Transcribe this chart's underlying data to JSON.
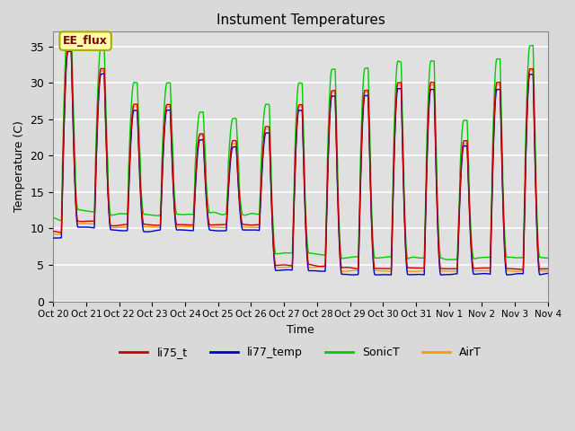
{
  "title": "Instument Temperatures",
  "xlabel": "Time",
  "ylabel": "Temperature (C)",
  "ylim": [
    0,
    37
  ],
  "yticks": [
    0,
    5,
    10,
    15,
    20,
    25,
    30,
    35
  ],
  "x_labels": [
    "Oct 20",
    "Oct 21",
    "Oct 22",
    "Oct 23",
    "Oct 24",
    "Oct 25",
    "Oct 26",
    "Oct 27",
    "Oct 28",
    "Oct 29",
    "Oct 30",
    "Oct 31",
    "Nov 1",
    "Nov 2",
    "Nov 3",
    "Nov 4"
  ],
  "colors": {
    "li75_t": "#cc0000",
    "li77_temp": "#0000cc",
    "SonicT": "#00cc00",
    "AirT": "#ff9900"
  },
  "legend_labels": [
    "li75_t",
    "li77_temp",
    "SonicT",
    "AirT"
  ],
  "annotation_text": "EE_flux",
  "annotation_color": "#800000",
  "annotation_bg": "#ffffaa",
  "num_days": 15,
  "points_per_day": 144
}
